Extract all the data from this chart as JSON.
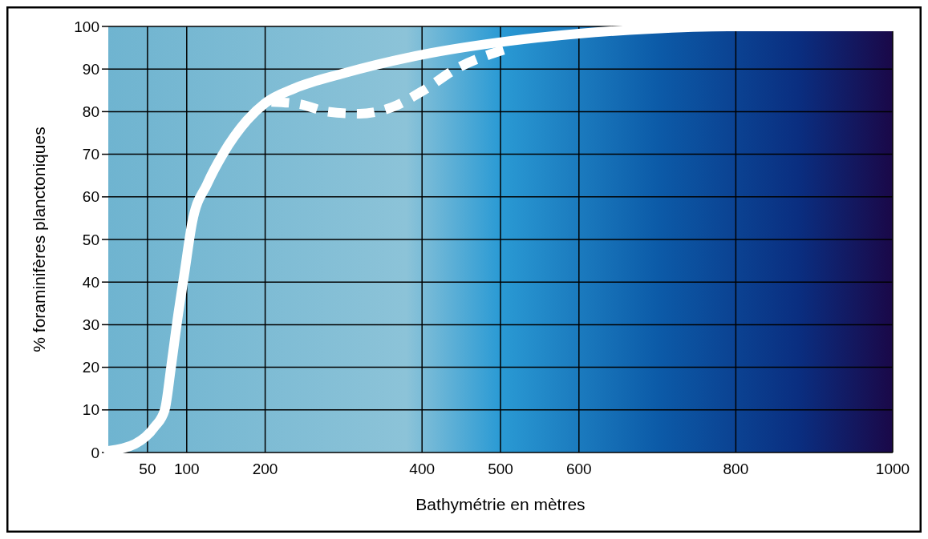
{
  "chart_data": {
    "type": "line",
    "xlabel": "Bathymétrie en mètres",
    "ylabel": "% foraminifères planctoniques",
    "xlim": [
      0,
      1000
    ],
    "ylim": [
      0,
      100
    ],
    "xticks": [
      50,
      100,
      200,
      400,
      500,
      600,
      800,
      1000
    ],
    "yticks": [
      0,
      10,
      20,
      30,
      40,
      50,
      60,
      70,
      80,
      90,
      100
    ],
    "grid": true,
    "marker": "none",
    "series": [
      {
        "color": "#ffffff",
        "line_style": "solid",
        "x": [
          0,
          34,
          59,
          72,
          80,
          88,
          97,
          107,
          126,
          146,
          177,
          200,
          238,
          300,
          401,
          504,
          600,
          688,
          790,
          1000
        ],
        "values": [
          0.4,
          2,
          6,
          10,
          20,
          31,
          42,
          54,
          63,
          70,
          78,
          82,
          85.5,
          89,
          93.4,
          96.4,
          98.3,
          99.4,
          100,
          100
        ]
      },
      {
        "color": "#ffffff",
        "line_style": "dashed",
        "x": [
          208,
          243,
          279,
          320,
          361,
          402,
          443,
          504
        ],
        "values": [
          82.3,
          81.8,
          80,
          79.5,
          81,
          85,
          90,
          94.5
        ]
      }
    ]
  }
}
